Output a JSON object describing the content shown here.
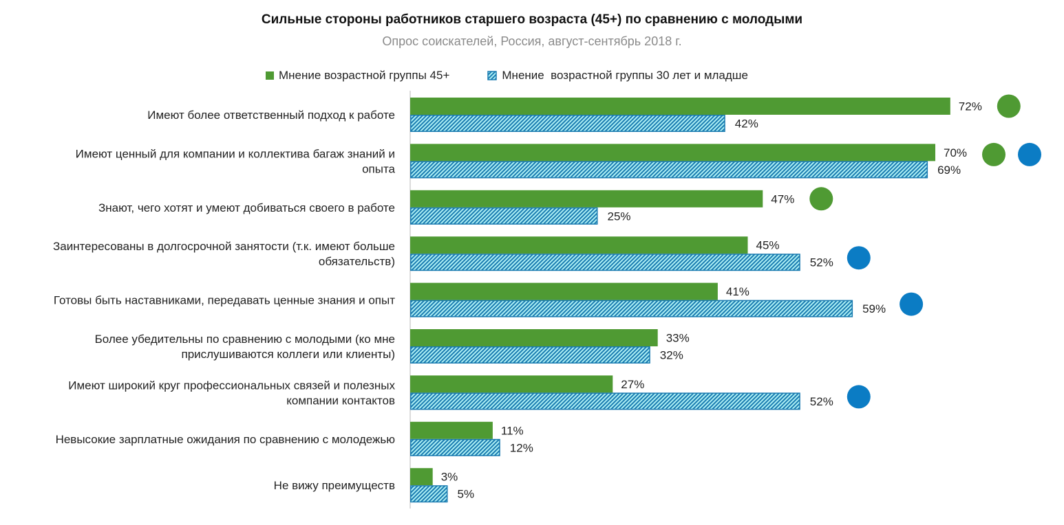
{
  "chart_data": {
    "type": "bar",
    "orientation": "horizontal",
    "title": "Сильные стороны работников старшего возраста (45+) по сравнению с молодыми",
    "subtitle": "Опрос соискателей, Россия, август-сентябрь 2018 г.",
    "unit": "%",
    "xlim": [
      0,
      100
    ],
    "grid": false,
    "legend_position": "top",
    "categories": [
      [
        "Имеют более ответственный подход к работе"
      ],
      [
        "Имеют ценный для компании и коллектива багаж знаний и",
        "опыта"
      ],
      [
        "Знают, чего хотят и умеют добиваться своего в работе"
      ],
      [
        "Заинтересованы в долгосрочной занятости (т.к. имеют больше",
        "обязательств)"
      ],
      [
        "Готовы быть наставниками, передавать ценные знания и опыт"
      ],
      [
        "Более убедительны по сравнению с молодыми (ко мне",
        "прислушиваются коллеги или клиенты)"
      ],
      [
        "Имеют широкий круг профессиональных связей и полезных",
        "компании контактов"
      ],
      [
        "Невысокие зарплатные ожидания по сравнению с молодежью"
      ],
      [
        "Не вижу преимуществ"
      ]
    ],
    "series": [
      {
        "name": "Мнение возрастной группы 45+",
        "color": "#4f9a33",
        "values": [
          72,
          70,
          47,
          45,
          41,
          33,
          27,
          11,
          3
        ]
      },
      {
        "name": "Мнение  возрастной группы 30 лет и младше",
        "color": "#1a7bb0",
        "fill": "#aef0f5",
        "values": [
          42,
          69,
          25,
          52,
          59,
          32,
          52,
          12,
          5
        ]
      }
    ],
    "markers": [
      [
        "green"
      ],
      [
        "green",
        "blue"
      ],
      [
        "green"
      ],
      [
        "blue"
      ],
      [
        "blue"
      ],
      [],
      [
        "blue"
      ],
      [],
      []
    ],
    "marker_colors": {
      "green": "#4f9a33",
      "blue": "#0b7cc4"
    }
  }
}
